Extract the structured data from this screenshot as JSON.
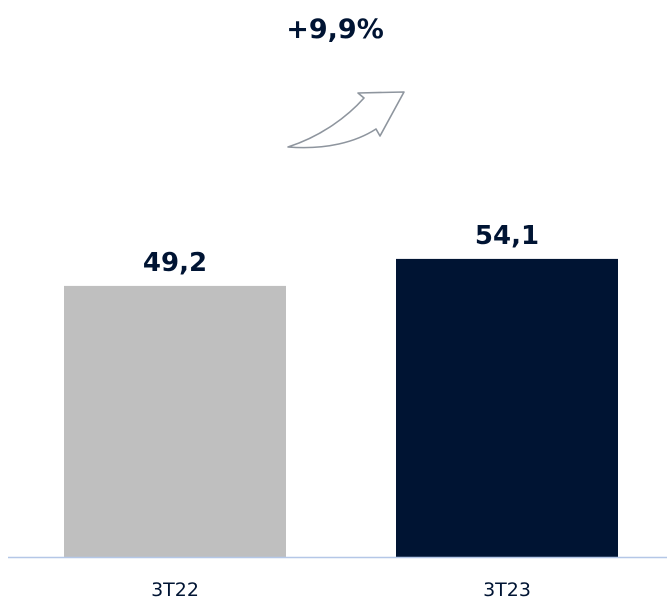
{
  "chart_data": {
    "type": "bar",
    "categories": [
      "3T22",
      "3T23"
    ],
    "values": [
      49.2,
      54.1
    ],
    "data_labels": [
      "49,2",
      "54,1"
    ],
    "ylim": [
      0,
      60
    ],
    "grid": false,
    "legend": "none",
    "annotation": "+9,9%",
    "colors": {
      "bars": [
        "#bfbfbf",
        "#001433"
      ],
      "text": "#001433",
      "axis": "#b4c7e7",
      "arrow_stroke": "#8e959e"
    }
  }
}
